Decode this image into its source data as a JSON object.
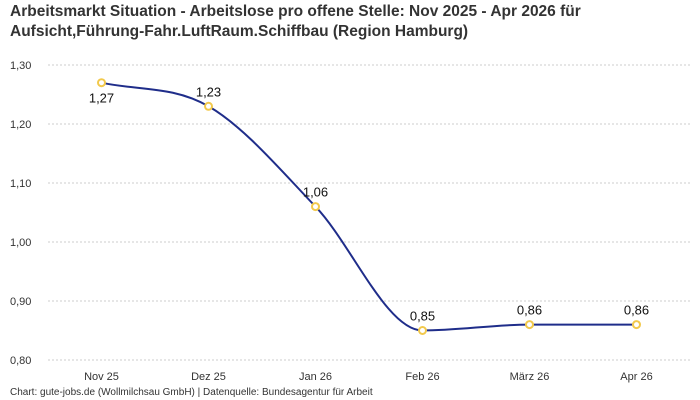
{
  "title_lines": [
    "Arbeitsmarkt Situation - Arbeitslose pro offene Stelle: Nov 2025 - Apr 2026 für",
    "Aufsicht,Führung-Fahr.LuftRaum.Schiffbau (Region Hamburg)"
  ],
  "footer": "Chart: gute-jobs.de (Wollmilchsau GmbH) | Datenquelle: Bundesagentur für Arbeit",
  "colors": {
    "line": "#1f2d8a",
    "marker": "#f2c94c",
    "grid": "#cccccc"
  },
  "chart_data": {
    "type": "line",
    "title": "Arbeitsmarkt Situation - Arbeitslose pro offene Stelle: Nov 2025 - Apr 2026 für Aufsicht,Führung-Fahr.LuftRaum.Schiffbau (Region Hamburg)",
    "categories": [
      "Nov 25",
      "Dez 25",
      "Jan 26",
      "Feb 26",
      "März 26",
      "Apr 26"
    ],
    "values": [
      1.27,
      1.23,
      1.06,
      0.85,
      0.86,
      0.86
    ],
    "value_labels": [
      "1,27",
      "1,23",
      "1,06",
      "0,85",
      "0,86",
      "0,86"
    ],
    "yticks": [
      "0,80",
      "0,90",
      "1,00",
      "1,10",
      "1,20",
      "1,30"
    ],
    "ytick_values": [
      0.8,
      0.9,
      1.0,
      1.1,
      1.2,
      1.3
    ],
    "ylim": [
      0.8,
      1.3
    ],
    "xlabel": "",
    "ylabel": "",
    "grid": true,
    "smooth": true
  }
}
